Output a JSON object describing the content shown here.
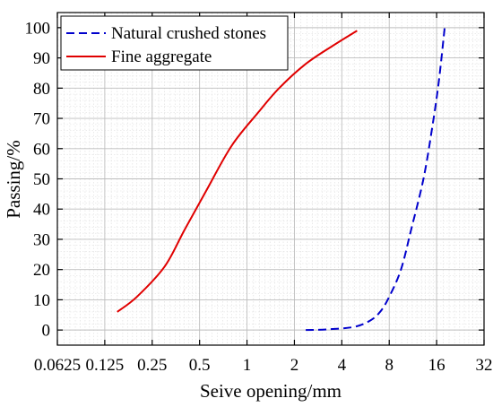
{
  "chart_data": {
    "type": "line",
    "xlabel": "Seive opening/mm",
    "ylabel": "Passing/%",
    "xscale": "log2",
    "xlim": [
      0.0625,
      32
    ],
    "ylim": [
      -5,
      105
    ],
    "x_ticks": [
      0.0625,
      0.125,
      0.25,
      0.5,
      1,
      2,
      4,
      8,
      16,
      32
    ],
    "x_tick_labels": [
      "0.0625",
      "0.125",
      "0.25",
      "0.5",
      "1",
      "2",
      "4",
      "8",
      "16",
      "32"
    ],
    "y_ticks": [
      0,
      10,
      20,
      30,
      40,
      50,
      60,
      70,
      80,
      90,
      100
    ],
    "y_tick_labels": [
      "0",
      "10",
      "20",
      "30",
      "40",
      "50",
      "60",
      "70",
      "80",
      "90",
      "100"
    ],
    "grid": true,
    "legend_position": "top-left",
    "series": [
      {
        "name": "Natural crushed stones",
        "color": "#0000cc",
        "dash": "dashed",
        "points": [
          [
            2.36,
            0
          ],
          [
            3.2,
            0.2
          ],
          [
            4.75,
            1
          ],
          [
            6.0,
            3
          ],
          [
            7.0,
            6
          ],
          [
            8.0,
            11
          ],
          [
            9.5,
            20
          ],
          [
            11.0,
            33
          ],
          [
            13.2,
            50
          ],
          [
            15.0,
            67
          ],
          [
            16.5,
            82
          ],
          [
            18.0,
            100
          ]
        ]
      },
      {
        "name": "Fine aggregate",
        "color": "#e00000",
        "dash": "solid",
        "points": [
          [
            0.15,
            6
          ],
          [
            0.2,
            11
          ],
          [
            0.3,
            21
          ],
          [
            0.4,
            33
          ],
          [
            0.55,
            46
          ],
          [
            0.8,
            61
          ],
          [
            1.18,
            72
          ],
          [
            1.6,
            80
          ],
          [
            2.36,
            88
          ],
          [
            3.5,
            94
          ],
          [
            5.0,
            99
          ]
        ]
      }
    ]
  }
}
